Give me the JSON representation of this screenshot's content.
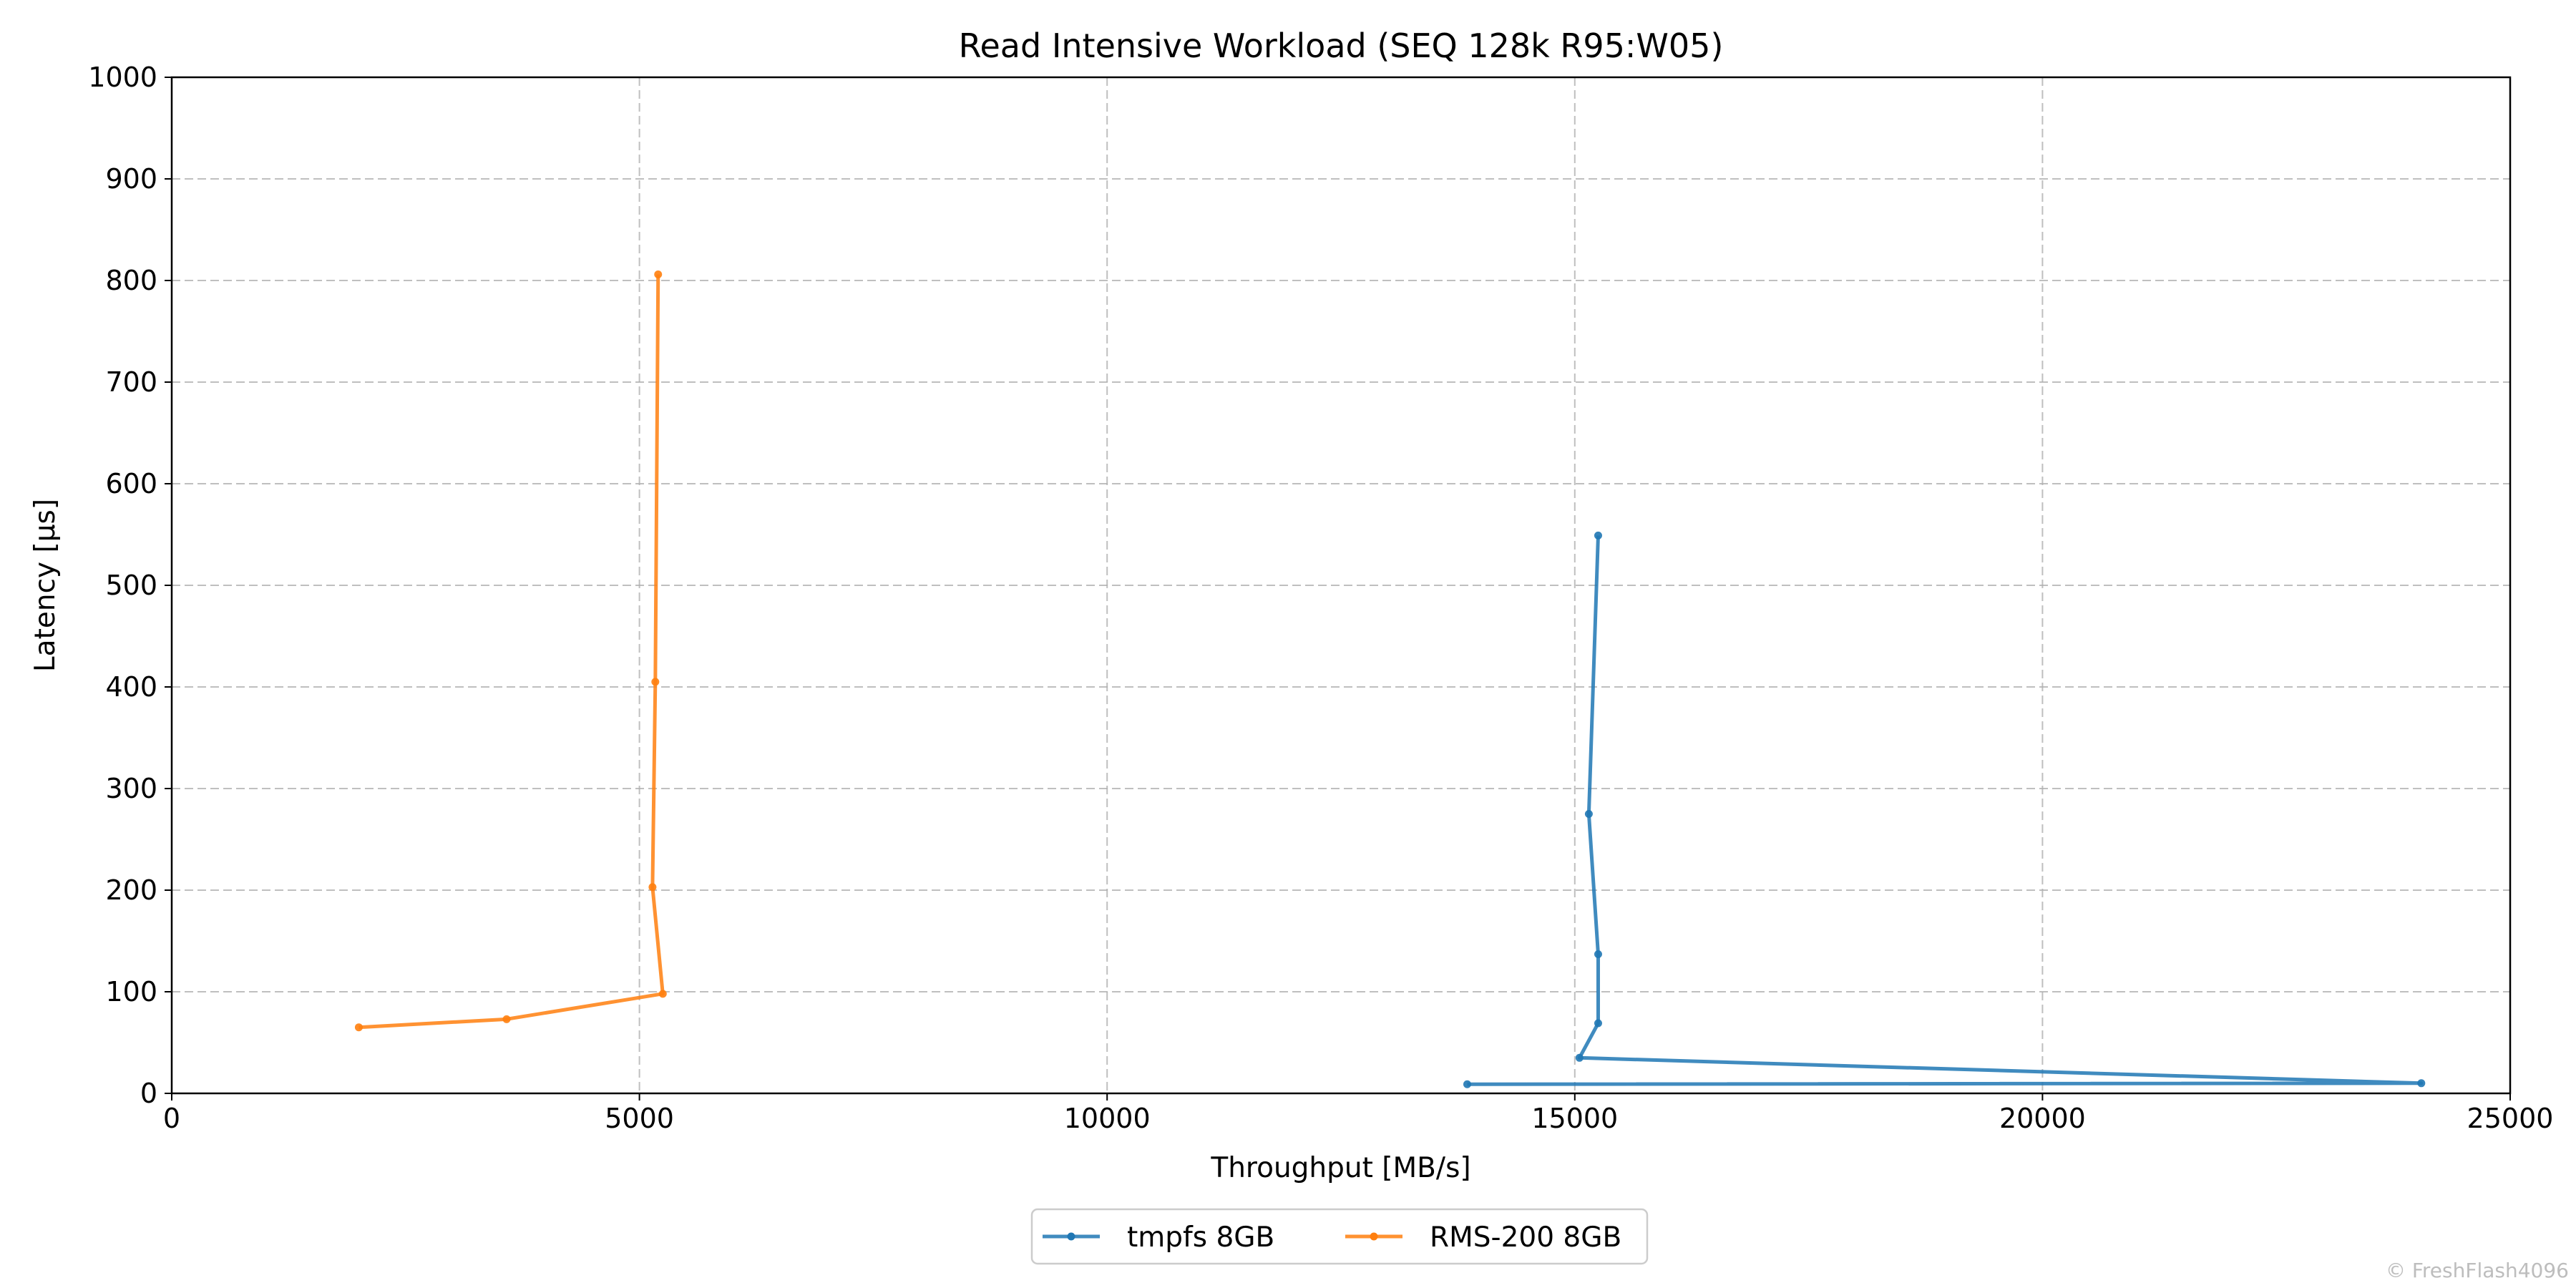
{
  "chart_data": {
    "type": "line",
    "title": "Read Intensive Workload (SEQ 128k R95:W05)",
    "xlabel": "Throughput [MB/s]",
    "ylabel": "Latency [µs]",
    "xlim": [
      0,
      25000
    ],
    "ylim": [
      0,
      1000
    ],
    "xticks": [
      0,
      5000,
      10000,
      15000,
      20000,
      25000
    ],
    "yticks": [
      0,
      100,
      200,
      300,
      400,
      500,
      600,
      700,
      800,
      900,
      1000
    ],
    "grid": true,
    "legend_position": "bottom-center",
    "series": [
      {
        "name": "tmpfs 8GB",
        "color": "#1f77b4",
        "marker": "point",
        "points": [
          {
            "x": 13850,
            "y": 9
          },
          {
            "x": 24050,
            "y": 10
          },
          {
            "x": 15050,
            "y": 35
          },
          {
            "x": 15250,
            "y": 69
          },
          {
            "x": 15250,
            "y": 137
          },
          {
            "x": 15150,
            "y": 275
          },
          {
            "x": 15250,
            "y": 549
          }
        ]
      },
      {
        "name": "RMS-200 8GB",
        "color": "#ff7f0e",
        "marker": "point",
        "points": [
          {
            "x": 2000,
            "y": 65
          },
          {
            "x": 3580,
            "y": 73
          },
          {
            "x": 5250,
            "y": 98
          },
          {
            "x": 5140,
            "y": 203
          },
          {
            "x": 5170,
            "y": 405
          },
          {
            "x": 5200,
            "y": 806
          }
        ]
      }
    ]
  },
  "watermark": "© FreshFlash4096"
}
